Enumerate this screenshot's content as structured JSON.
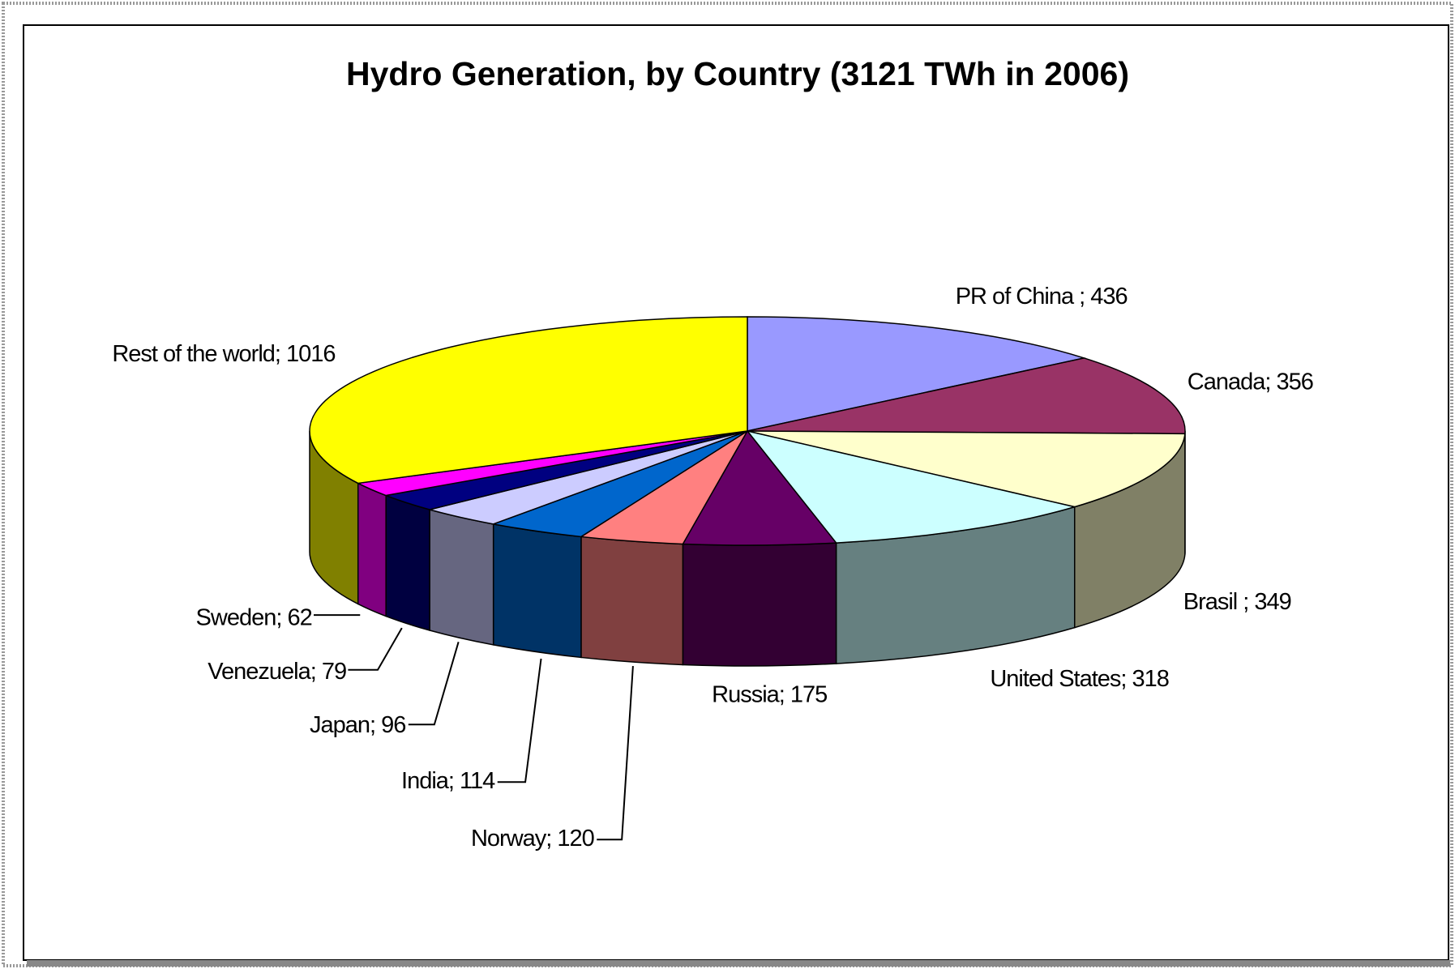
{
  "chart_data": {
    "type": "pie3d",
    "title": "Hydro Generation, by Country (3121 TWh in 2006)",
    "categories": [
      "PR of China",
      "Canada",
      "Brasil",
      "United States",
      "Russia",
      "Norway",
      "India",
      "Japan",
      "Venezuela",
      "Sweden",
      "Rest of the world"
    ],
    "values": [
      436,
      356,
      349,
      318,
      175,
      120,
      114,
      96,
      79,
      62,
      1016
    ],
    "value_labels": [
      "PR of China ; 436",
      "Canada; 356",
      "Brasil ; 349",
      "United States; 318",
      "Russia; 175",
      "Norway; 120",
      "India; 114",
      "Japan; 96",
      "Venezuela; 79",
      "Sweden; 62",
      "Rest of the world; 1016"
    ],
    "colors": [
      "#9999ff",
      "#993366",
      "#ffffcc",
      "#ccffff",
      "#660066",
      "#ff8080",
      "#0066cc",
      "#ccccff",
      "#000080",
      "#ff00ff",
      "#ffff00"
    ]
  }
}
